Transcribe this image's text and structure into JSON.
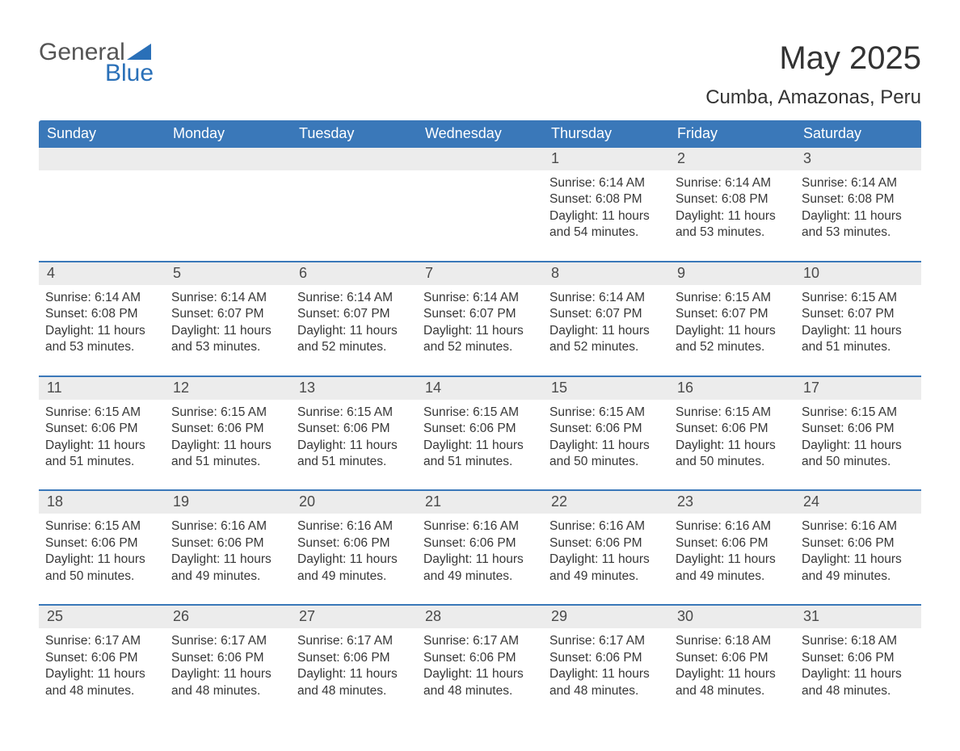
{
  "logo": {
    "text1": "General",
    "text2": "Blue",
    "icon_fill": "#2a70b8",
    "text1_color": "#555555",
    "text2_color": "#2a70b8"
  },
  "title": "May 2025",
  "location": "Cumba, Amazonas, Peru",
  "colors": {
    "header_bg": "#3a78b9",
    "header_text": "#ffffff",
    "daynum_bg": "#ececec",
    "daynum_text": "#4a4a4a",
    "body_text": "#373737",
    "week_divider": "#3a78b9",
    "page_bg": "#ffffff"
  },
  "weekdays": [
    "Sunday",
    "Monday",
    "Tuesday",
    "Wednesday",
    "Thursday",
    "Friday",
    "Saturday"
  ],
  "labels": {
    "sunrise": "Sunrise:",
    "sunset": "Sunset:",
    "daylight_prefix": "Daylight:",
    "daylight_join": "and",
    "daylight_unit_h": "hours",
    "daylight_unit_m": "minutes."
  },
  "weeks": [
    [
      null,
      null,
      null,
      null,
      {
        "day": "1",
        "sunrise": "6:14 AM",
        "sunset": "6:08 PM",
        "dl_h": "11",
        "dl_m": "54"
      },
      {
        "day": "2",
        "sunrise": "6:14 AM",
        "sunset": "6:08 PM",
        "dl_h": "11",
        "dl_m": "53"
      },
      {
        "day": "3",
        "sunrise": "6:14 AM",
        "sunset": "6:08 PM",
        "dl_h": "11",
        "dl_m": "53"
      }
    ],
    [
      {
        "day": "4",
        "sunrise": "6:14 AM",
        "sunset": "6:08 PM",
        "dl_h": "11",
        "dl_m": "53"
      },
      {
        "day": "5",
        "sunrise": "6:14 AM",
        "sunset": "6:07 PM",
        "dl_h": "11",
        "dl_m": "53"
      },
      {
        "day": "6",
        "sunrise": "6:14 AM",
        "sunset": "6:07 PM",
        "dl_h": "11",
        "dl_m": "52"
      },
      {
        "day": "7",
        "sunrise": "6:14 AM",
        "sunset": "6:07 PM",
        "dl_h": "11",
        "dl_m": "52"
      },
      {
        "day": "8",
        "sunrise": "6:14 AM",
        "sunset": "6:07 PM",
        "dl_h": "11",
        "dl_m": "52"
      },
      {
        "day": "9",
        "sunrise": "6:15 AM",
        "sunset": "6:07 PM",
        "dl_h": "11",
        "dl_m": "52"
      },
      {
        "day": "10",
        "sunrise": "6:15 AM",
        "sunset": "6:07 PM",
        "dl_h": "11",
        "dl_m": "51"
      }
    ],
    [
      {
        "day": "11",
        "sunrise": "6:15 AM",
        "sunset": "6:06 PM",
        "dl_h": "11",
        "dl_m": "51"
      },
      {
        "day": "12",
        "sunrise": "6:15 AM",
        "sunset": "6:06 PM",
        "dl_h": "11",
        "dl_m": "51"
      },
      {
        "day": "13",
        "sunrise": "6:15 AM",
        "sunset": "6:06 PM",
        "dl_h": "11",
        "dl_m": "51"
      },
      {
        "day": "14",
        "sunrise": "6:15 AM",
        "sunset": "6:06 PM",
        "dl_h": "11",
        "dl_m": "51"
      },
      {
        "day": "15",
        "sunrise": "6:15 AM",
        "sunset": "6:06 PM",
        "dl_h": "11",
        "dl_m": "50"
      },
      {
        "day": "16",
        "sunrise": "6:15 AM",
        "sunset": "6:06 PM",
        "dl_h": "11",
        "dl_m": "50"
      },
      {
        "day": "17",
        "sunrise": "6:15 AM",
        "sunset": "6:06 PM",
        "dl_h": "11",
        "dl_m": "50"
      }
    ],
    [
      {
        "day": "18",
        "sunrise": "6:15 AM",
        "sunset": "6:06 PM",
        "dl_h": "11",
        "dl_m": "50"
      },
      {
        "day": "19",
        "sunrise": "6:16 AM",
        "sunset": "6:06 PM",
        "dl_h": "11",
        "dl_m": "49"
      },
      {
        "day": "20",
        "sunrise": "6:16 AM",
        "sunset": "6:06 PM",
        "dl_h": "11",
        "dl_m": "49"
      },
      {
        "day": "21",
        "sunrise": "6:16 AM",
        "sunset": "6:06 PM",
        "dl_h": "11",
        "dl_m": "49"
      },
      {
        "day": "22",
        "sunrise": "6:16 AM",
        "sunset": "6:06 PM",
        "dl_h": "11",
        "dl_m": "49"
      },
      {
        "day": "23",
        "sunrise": "6:16 AM",
        "sunset": "6:06 PM",
        "dl_h": "11",
        "dl_m": "49"
      },
      {
        "day": "24",
        "sunrise": "6:16 AM",
        "sunset": "6:06 PM",
        "dl_h": "11",
        "dl_m": "49"
      }
    ],
    [
      {
        "day": "25",
        "sunrise": "6:17 AM",
        "sunset": "6:06 PM",
        "dl_h": "11",
        "dl_m": "48"
      },
      {
        "day": "26",
        "sunrise": "6:17 AM",
        "sunset": "6:06 PM",
        "dl_h": "11",
        "dl_m": "48"
      },
      {
        "day": "27",
        "sunrise": "6:17 AM",
        "sunset": "6:06 PM",
        "dl_h": "11",
        "dl_m": "48"
      },
      {
        "day": "28",
        "sunrise": "6:17 AM",
        "sunset": "6:06 PM",
        "dl_h": "11",
        "dl_m": "48"
      },
      {
        "day": "29",
        "sunrise": "6:17 AM",
        "sunset": "6:06 PM",
        "dl_h": "11",
        "dl_m": "48"
      },
      {
        "day": "30",
        "sunrise": "6:18 AM",
        "sunset": "6:06 PM",
        "dl_h": "11",
        "dl_m": "48"
      },
      {
        "day": "31",
        "sunrise": "6:18 AM",
        "sunset": "6:06 PM",
        "dl_h": "11",
        "dl_m": "48"
      }
    ]
  ]
}
